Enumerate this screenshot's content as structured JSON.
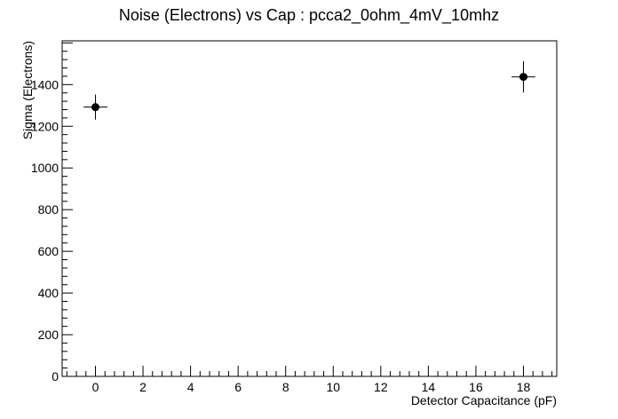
{
  "chart_data": {
    "type": "scatter",
    "title": "Noise (Electrons) vs Cap : pcca2_0ohm_4mV_10mhz",
    "xlabel": "Detector Capacitance (pF)",
    "ylabel": "Sigma (Electrons)",
    "xlim": [
      -1.4,
      19.4
    ],
    "ylim": [
      0,
      1610
    ],
    "x_ticks": [
      0,
      2,
      4,
      6,
      8,
      10,
      12,
      14,
      16,
      18
    ],
    "y_ticks": [
      0,
      200,
      400,
      600,
      800,
      1000,
      1200,
      1400
    ],
    "grid": false,
    "legend": "none",
    "points": [
      {
        "x": 0,
        "y": 1292,
        "xerr": 0.5,
        "yerr": 60
      },
      {
        "x": 18,
        "y": 1437,
        "xerr": 0.5,
        "yerr": 75
      }
    ]
  }
}
